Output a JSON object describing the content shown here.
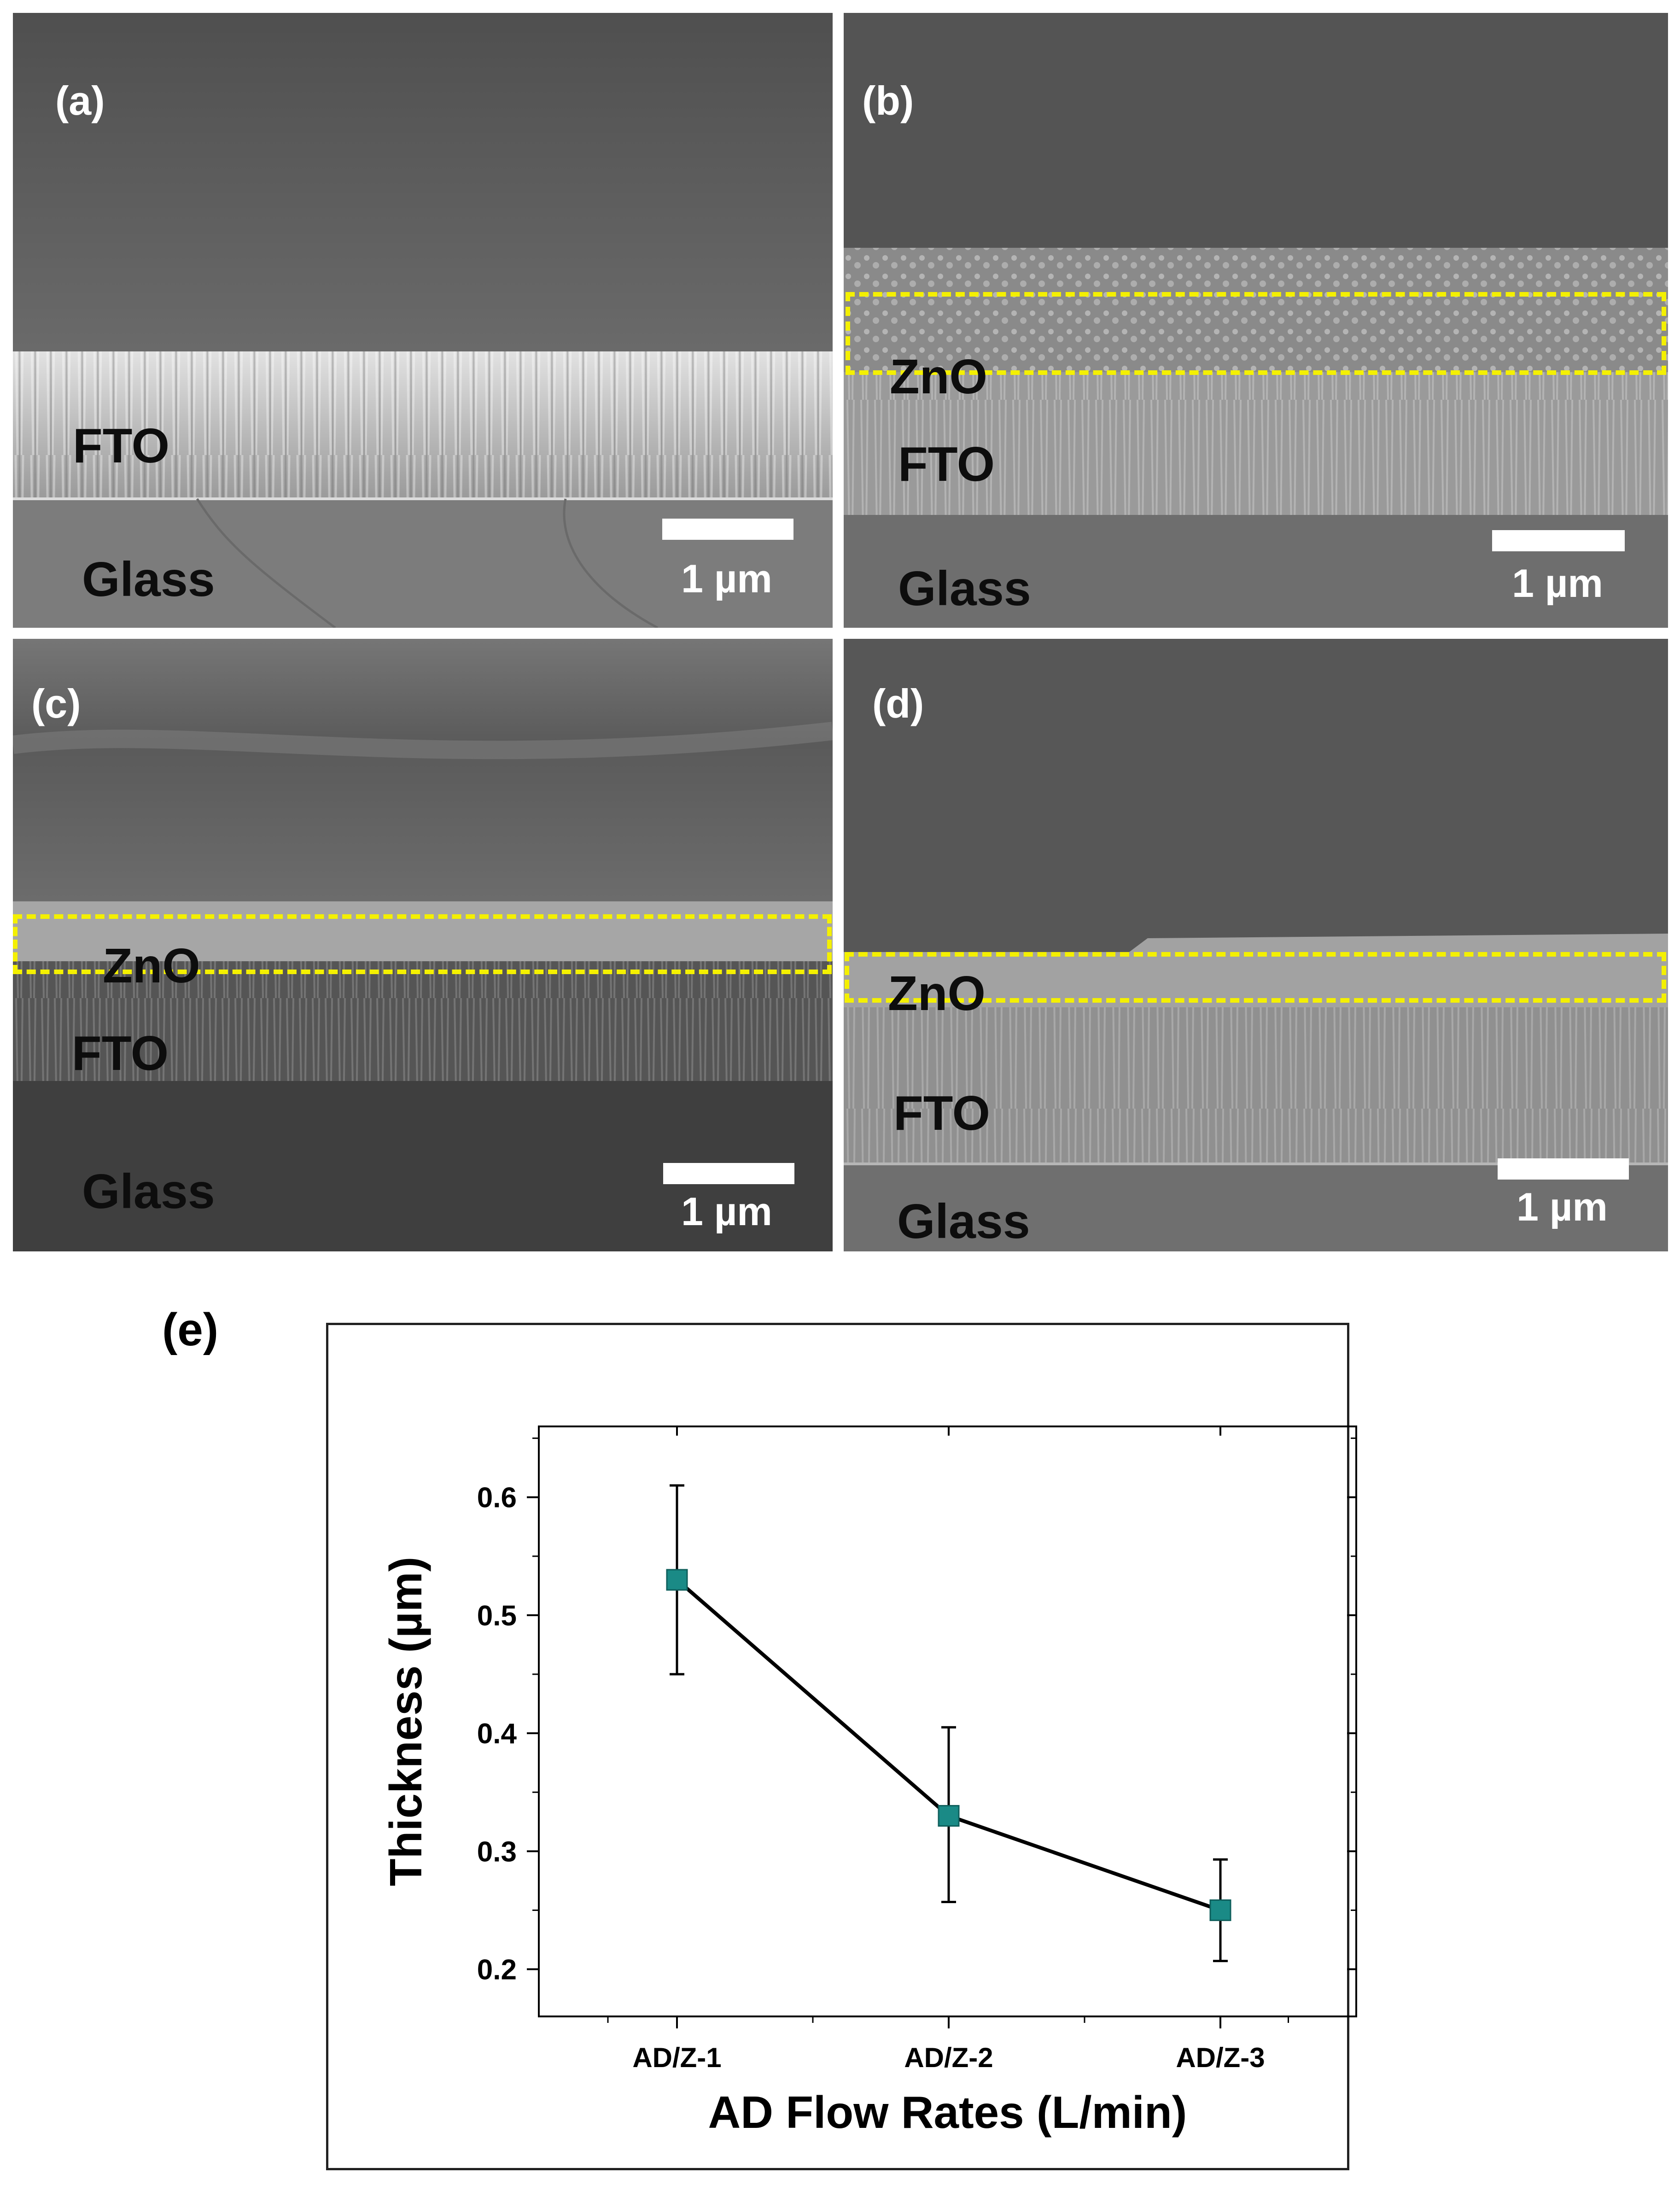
{
  "panels": {
    "a": {
      "label": "(a)",
      "layers": {
        "fto": "FTO",
        "glass": "Glass"
      },
      "scale": "1 µm"
    },
    "b": {
      "label": "(b)",
      "layers": {
        "zno": "ZnO",
        "fto": "FTO",
        "glass": "Glass"
      },
      "scale": "1 µm"
    },
    "c": {
      "label": "(c)",
      "layers": {
        "zno": "ZnO",
        "fto": "FTO",
        "glass": "Glass"
      },
      "scale": "1 µm"
    },
    "d": {
      "label": "(d)",
      "layers": {
        "zno": "ZnO",
        "fto": "FTO",
        "glass": "Glass"
      },
      "scale": "1 µm"
    }
  },
  "panel_e_label": "(e)",
  "colors": {
    "marker": "#1a8a86",
    "line": "#000000",
    "highlight_box": "#f4f000"
  },
  "chart_data": {
    "type": "line",
    "categories": [
      "AD/Z-1",
      "AD/Z-2",
      "AD/Z-3"
    ],
    "series": [
      {
        "values": [
          0.53,
          0.33,
          0.25
        ],
        "error_low": [
          0.45,
          0.257,
          0.207
        ],
        "error_high": [
          0.61,
          0.405,
          0.293
        ]
      }
    ],
    "xlabel": "AD Flow Rates (L/min)",
    "ylabel": "Thickness (µm)",
    "ylim": [
      0.16,
      0.66
    ],
    "yticks": [
      0.2,
      0.3,
      0.4,
      0.5,
      0.6
    ],
    "ytick_labels": [
      "0.2",
      "0.3",
      "0.4",
      "0.5",
      "0.6"
    ],
    "marker": "square",
    "grid": false
  }
}
